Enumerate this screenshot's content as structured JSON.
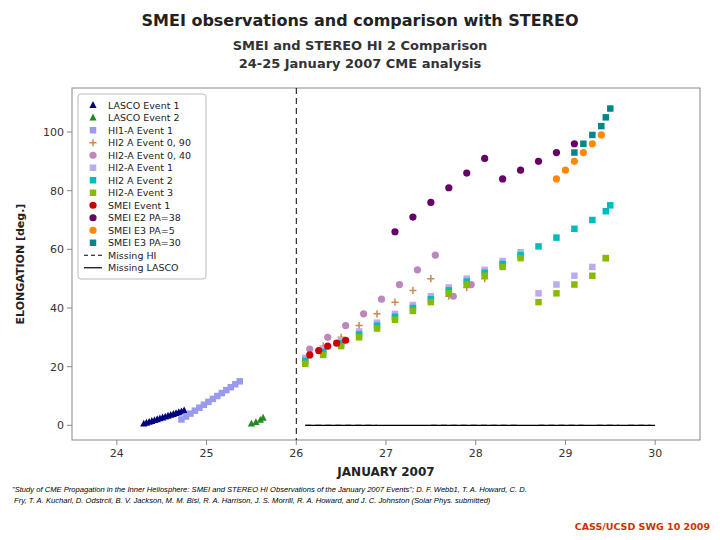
{
  "chart_data": {
    "type": "scatter",
    "title": "SMEI observations and comparison with STEREO",
    "subtitle": [
      "SMEI and STEREO HI 2 Comparison",
      "24-25 January 2007 CME analysis"
    ],
    "x_label": "JANUARY 2007",
    "y_label": "ELONGATION [deg.]",
    "xlim": [
      23.5,
      30.5
    ],
    "ylim": [
      -5,
      115
    ],
    "xticks": [
      24,
      25,
      26,
      27,
      28,
      29,
      30
    ],
    "yticks": [
      0,
      20,
      40,
      60,
      80,
      100
    ],
    "grid": false,
    "legend": "upper left",
    "annotations": [
      {
        "text": "\"Study of CME Propagation in the Inner Heliosphere: SMEI and STEREO HI Observations of the January 2007 Events\"; D. F. Webb1, T. A. Howard, C. D.\n Fry, T. A. Kucharl, D. Odstrcil, B. V. Jackson, M. M. Bisi, R. A. Harrison, J. S. Morrill, R. A. Howard, and J. C. Johnston (Solar Phys. submitted)"
      },
      {
        "text": "CASS/UCSD SWG 10 2009",
        "color": "#cc3300"
      }
    ],
    "reference_lines": [
      {
        "x": 26.0,
        "line_style": "dashed"
      }
    ],
    "series": [
      {
        "name": "LASCO Event 1",
        "color": "#000080",
        "marker": "triangle",
        "x": [
          24.3,
          24.33,
          24.36,
          24.39,
          24.42,
          24.45,
          24.48,
          24.51,
          24.54,
          24.57,
          24.6,
          24.63,
          24.66,
          24.69,
          24.72,
          24.75
        ],
        "values": [
          0.5,
          0.8,
          1.1,
          1.4,
          1.7,
          2.0,
          2.3,
          2.6,
          2.9,
          3.2,
          3.5,
          3.8,
          4.1,
          4.4,
          4.7,
          5.0
        ]
      },
      {
        "name": "LASCO Event 2",
        "color": "#228B22",
        "marker": "triangle",
        "x": [
          25.5,
          25.55,
          25.6,
          25.63
        ],
        "values": [
          0.5,
          1.0,
          1.8,
          2.5
        ]
      },
      {
        "name": "HI1-A Event 1",
        "color": "#9999ee",
        "marker": "square",
        "x": [
          24.72,
          24.77,
          24.82,
          24.87,
          24.92,
          24.97,
          25.02,
          25.07,
          25.12,
          25.17,
          25.22,
          25.27,
          25.32,
          25.37
        ],
        "values": [
          2,
          3,
          4,
          5,
          6,
          7,
          8,
          9,
          10,
          11,
          12,
          13,
          14,
          15
        ]
      },
      {
        "name": "HI2 A Event 0, 90",
        "color": "#cc8855",
        "marker": "plus",
        "x": [
          26.15,
          26.3,
          26.5,
          26.7,
          26.9,
          27.1,
          27.3,
          27.5,
          27.7,
          27.9,
          28.1
        ],
        "values": [
          24,
          27,
          30,
          34,
          38,
          42,
          46,
          50,
          44,
          47,
          50
        ]
      },
      {
        "name": "HI2-A Event 0, 40",
        "color": "#bb88bb",
        "marker": "circle",
        "x": [
          26.15,
          26.35,
          26.55,
          26.75,
          26.95,
          27.15,
          27.35,
          27.55,
          27.75,
          27.95
        ],
        "values": [
          26,
          30,
          34,
          38,
          43,
          48,
          53,
          58,
          44,
          48
        ]
      },
      {
        "name": "HI2-A Event 1",
        "color": "#bbaaee",
        "marker": "square",
        "x": [
          26.1,
          26.3,
          26.5,
          26.7,
          26.9,
          27.1,
          27.3,
          27.5,
          27.7,
          27.9,
          28.1,
          28.3,
          28.5,
          28.7,
          28.9,
          29.1,
          29.3,
          29.45
        ],
        "values": [
          23,
          26,
          29,
          32,
          35,
          38,
          41,
          44,
          47,
          50,
          53,
          56,
          59,
          45,
          48,
          51,
          54,
          57
        ]
      },
      {
        "name": "HI2 A Event 2",
        "color": "#00bbbb",
        "marker": "square",
        "x": [
          26.1,
          26.3,
          26.5,
          26.7,
          26.9,
          27.1,
          27.3,
          27.5,
          27.7,
          27.9,
          28.1,
          28.3,
          28.5,
          28.7,
          28.9,
          29.1,
          29.3,
          29.45,
          29.5
        ],
        "values": [
          22,
          25,
          28,
          31,
          34,
          37,
          40,
          43,
          46,
          49,
          52,
          55,
          58,
          61,
          64,
          67,
          70,
          73,
          75
        ]
      },
      {
        "name": "HI2-A Event 3",
        "color": "#88bb00",
        "marker": "square",
        "x": [
          26.1,
          26.3,
          26.5,
          26.7,
          26.9,
          27.1,
          27.3,
          27.5,
          27.7,
          27.9,
          28.1,
          28.3,
          28.5,
          28.7,
          28.9,
          29.1,
          29.3,
          29.45
        ],
        "values": [
          21,
          24,
          27,
          30,
          33,
          36,
          39,
          42,
          45,
          48,
          51,
          54,
          57,
          42,
          45,
          48,
          51,
          57
        ]
      },
      {
        "name": "SMEI Event 1",
        "color": "#cc0000",
        "marker": "circle",
        "x": [
          26.15,
          26.25,
          26.35,
          26.45,
          26.55
        ],
        "values": [
          24,
          25.5,
          27,
          28,
          29
        ]
      },
      {
        "name": "SMEI E2 PA=38",
        "color": "#660066",
        "marker": "circle",
        "x": [
          27.1,
          27.3,
          27.5,
          27.7,
          27.9,
          28.1,
          28.3,
          28.5,
          28.7,
          28.9,
          29.1
        ],
        "values": [
          66,
          71,
          76,
          81,
          86,
          91,
          84,
          87,
          90,
          93,
          96
        ]
      },
      {
        "name": "SMEI E3 PA=5",
        "color": "#ff8800",
        "marker": "circle",
        "x": [
          28.9,
          29.0,
          29.1,
          29.2,
          29.3,
          29.4
        ],
        "values": [
          84,
          87,
          90,
          93,
          96,
          99
        ]
      },
      {
        "name": "SMEI E3 PA=30",
        "color": "#008888",
        "marker": "square",
        "x": [
          29.1,
          29.2,
          29.3,
          29.4,
          29.45,
          29.5
        ],
        "values": [
          93,
          96,
          99,
          102,
          105,
          108
        ]
      },
      {
        "name": "Missing HI",
        "color": "#000000",
        "type": "line",
        "line_style": "dashed",
        "x": [
          26.1,
          26.9,
          null,
          27.5,
          28.5,
          null,
          28.7,
          29.2,
          null,
          29.35,
          29.6,
          null,
          29.7,
          29.95
        ],
        "values": [
          0,
          0,
          null,
          0,
          0,
          null,
          0,
          0,
          null,
          0,
          0,
          null,
          0,
          0
        ]
      },
      {
        "name": "Missing LASCO",
        "color": "#000000",
        "type": "line",
        "line_style": "solid",
        "x": [
          26.1,
          30.0
        ],
        "values": [
          0,
          0
        ]
      }
    ]
  }
}
